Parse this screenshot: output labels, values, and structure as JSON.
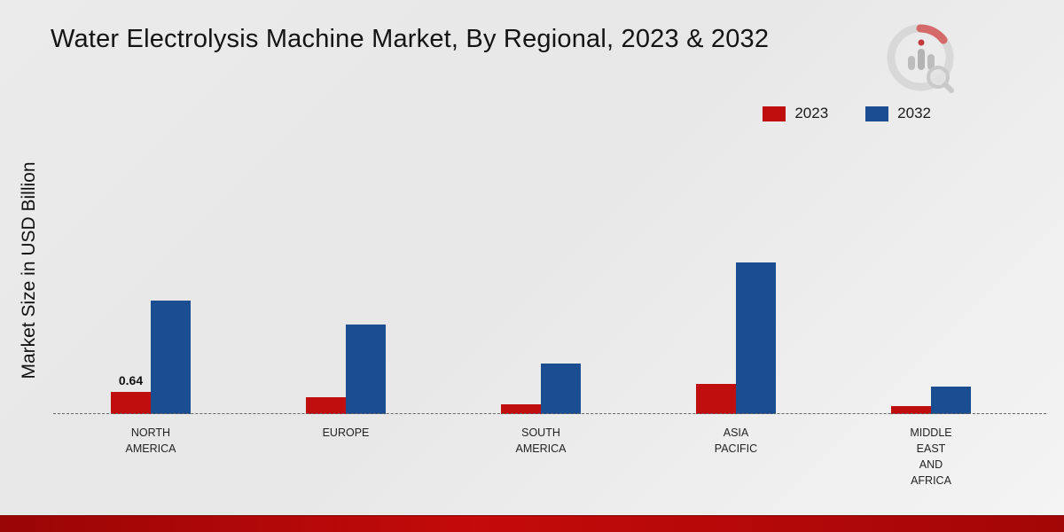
{
  "title": "Water Electrolysis Machine Market, By Regional, 2023 & 2032",
  "ylabel": "Market Size in USD Billion",
  "brand": {
    "logo_name": "market-research-future-logo"
  },
  "legend": {
    "items": [
      {
        "label": "2023",
        "color": "#c00d0d"
      },
      {
        "label": "2032",
        "color": "#1b4e90"
      }
    ]
  },
  "chart_data": {
    "type": "bar",
    "title": "Water Electrolysis Machine Market, By Regional, 2023 & 2032",
    "xlabel": "",
    "ylabel": "Market Size in USD Billion",
    "categories": [
      "NORTH AMERICA",
      "EUROPE",
      "SOUTH AMERICA",
      "ASIA PACIFIC",
      "MIDDLE EAST AND AFRICA"
    ],
    "category_label_lines": [
      [
        "NORTH",
        "AMERICA"
      ],
      [
        "EUROPE"
      ],
      [
        "SOUTH",
        "AMERICA"
      ],
      [
        "ASIA",
        "PACIFIC"
      ],
      [
        "MIDDLE",
        "EAST",
        "AND",
        "AFRICA"
      ]
    ],
    "series": [
      {
        "name": "2023",
        "color": "#c00d0d",
        "values": [
          0.64,
          0.5,
          0.28,
          0.87,
          0.23
        ]
      },
      {
        "name": "2032",
        "color": "#1b4e90",
        "values": [
          3.28,
          2.6,
          1.47,
          4.38,
          0.8
        ]
      }
    ],
    "data_labels": [
      {
        "category": "NORTH AMERICA",
        "series": "2023",
        "text": "0.64"
      }
    ],
    "ylim": [
      0,
      4.6
    ],
    "grid": false,
    "baseline_style": "dashed",
    "legend_position": "top-right"
  }
}
